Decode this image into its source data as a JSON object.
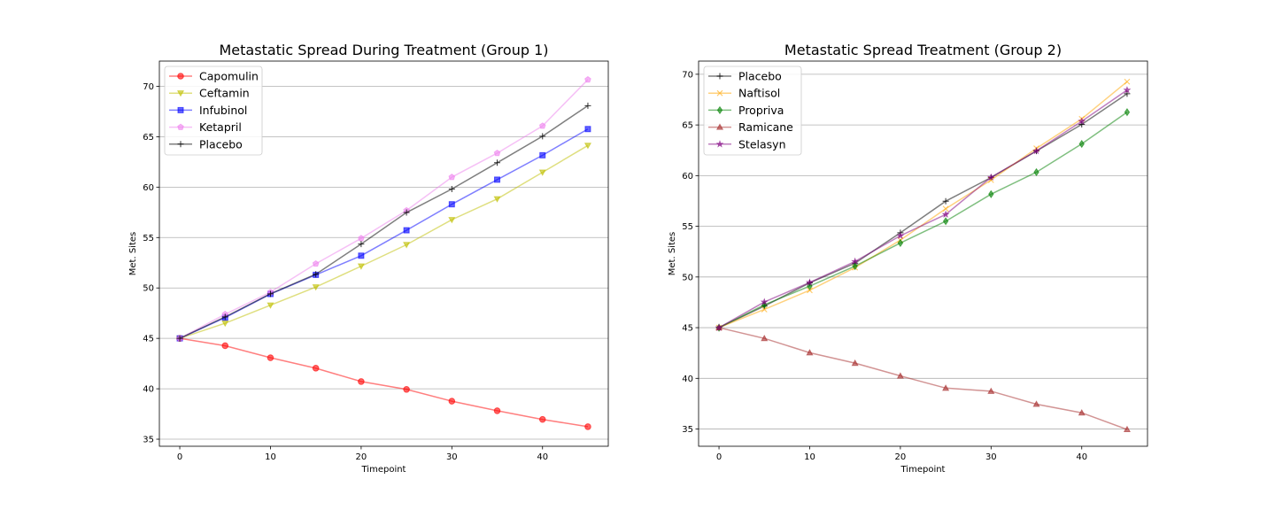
{
  "chart_data": [
    {
      "type": "line",
      "title": "Metastatic Spread During Treatment (Group 1)",
      "xlabel": "Timepoint",
      "ylabel": "Met. Sites",
      "xlim": [
        -2.25,
        47.25
      ],
      "ylim": [
        34.3,
        72.5
      ],
      "xticks": [
        0,
        10,
        20,
        30,
        40
      ],
      "yticks": [
        35,
        40,
        45,
        50,
        55,
        60,
        65,
        70
      ],
      "grid": "horizontal",
      "legend": "upper-left",
      "x": [
        0,
        5,
        10,
        15,
        20,
        25,
        30,
        35,
        40,
        45
      ],
      "series": [
        {
          "name": "Capomulin",
          "color": "#ff0000",
          "marker": "circle",
          "values": [
            45.0,
            44.27,
            43.08,
            42.04,
            40.72,
            39.94,
            38.77,
            37.82,
            36.96,
            36.24
          ]
        },
        {
          "name": "Ceftamin",
          "color": "#bfbf00",
          "marker": "triangle-down",
          "values": [
            45.0,
            46.5,
            48.29,
            50.09,
            52.16,
            54.29,
            56.77,
            58.83,
            61.47,
            64.13
          ]
        },
        {
          "name": "Infubinol",
          "color": "#0000ff",
          "marker": "square",
          "values": [
            45.0,
            47.06,
            49.4,
            51.3,
            53.2,
            55.72,
            58.3,
            60.74,
            63.16,
            65.76
          ]
        },
        {
          "name": "Ketapril",
          "color": "#ee82ee",
          "marker": "pentagon",
          "values": [
            45.0,
            47.39,
            49.58,
            52.4,
            54.92,
            57.68,
            60.99,
            63.37,
            66.07,
            70.66
          ]
        },
        {
          "name": "Placebo",
          "color": "#000000",
          "marker": "plus",
          "values": [
            45.0,
            47.13,
            49.42,
            51.36,
            54.36,
            57.48,
            59.81,
            62.42,
            65.05,
            68.08
          ]
        }
      ]
    },
    {
      "type": "line",
      "title": "Metastatic Spread Treatment (Group 2)",
      "xlabel": "Timepoint",
      "ylabel": "Met. Sites",
      "xlim": [
        -2.25,
        47.25
      ],
      "ylim": [
        33.3,
        71.3
      ],
      "xticks": [
        0,
        10,
        20,
        30,
        40
      ],
      "yticks": [
        35,
        40,
        45,
        50,
        55,
        60,
        65,
        70
      ],
      "grid": "horizontal",
      "legend": "upper-left",
      "x": [
        0,
        5,
        10,
        15,
        20,
        25,
        30,
        35,
        40,
        45
      ],
      "series": [
        {
          "name": "Placebo",
          "color": "#000000",
          "marker": "plus",
          "values": [
            45.0,
            47.13,
            49.42,
            51.36,
            54.36,
            57.48,
            59.81,
            62.42,
            65.05,
            68.08
          ]
        },
        {
          "name": "Naftisol",
          "color": "#ffa500",
          "marker": "x",
          "values": [
            45.0,
            46.8,
            48.69,
            50.93,
            53.64,
            56.73,
            59.56,
            62.69,
            65.6,
            69.27
          ]
        },
        {
          "name": "Propriva",
          "color": "#008000",
          "marker": "diamond",
          "values": [
            45.0,
            47.25,
            49.1,
            51.07,
            53.35,
            55.5,
            58.17,
            60.34,
            63.13,
            66.26
          ]
        },
        {
          "name": "Ramicane",
          "color": "#a52a2a",
          "marker": "triangle-up",
          "values": [
            45.0,
            43.94,
            42.53,
            41.5,
            40.24,
            39.04,
            38.73,
            37.45,
            36.6,
            34.96
          ]
        },
        {
          "name": "Stelasyn",
          "color": "#800080",
          "marker": "star",
          "values": [
            45.0,
            47.53,
            49.46,
            51.53,
            54.07,
            56.17,
            59.83,
            62.44,
            65.36,
            68.44
          ]
        }
      ]
    }
  ]
}
